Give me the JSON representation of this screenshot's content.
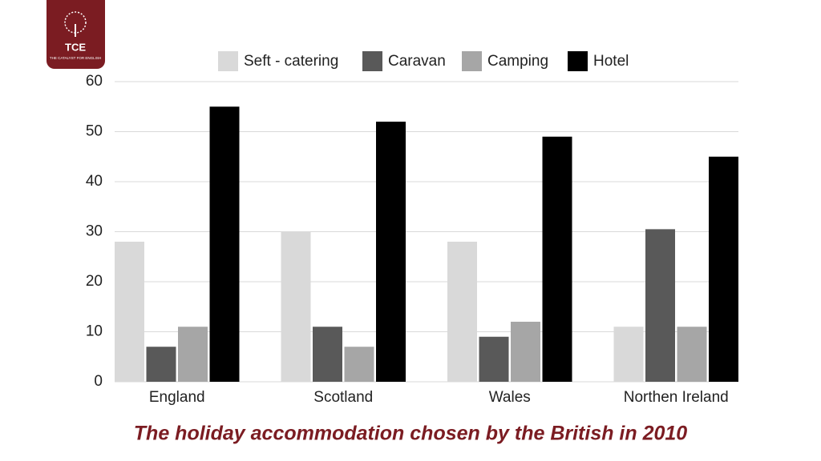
{
  "logo": {
    "title": "TCE",
    "subtitle": "THE CATALYST FOR ENGLISH"
  },
  "chart_data": {
    "type": "bar",
    "title": "The holiday accommodation chosen by the British in 2010",
    "categories": [
      "England",
      "Scotland",
      "Wales",
      "Northen Ireland"
    ],
    "series": [
      {
        "name": "Seft - catering",
        "color": "#d9d9d9",
        "values": [
          28,
          30,
          28,
          11
        ]
      },
      {
        "name": "Caravan",
        "color": "#595959",
        "values": [
          7,
          11,
          9,
          30.5
        ]
      },
      {
        "name": "Camping",
        "color": "#a6a6a6",
        "values": [
          11,
          7,
          12,
          11
        ]
      },
      {
        "name": "Hotel",
        "color": "#000000",
        "values": [
          55,
          52,
          49,
          45
        ]
      }
    ],
    "ylim": [
      0,
      60
    ],
    "yticks": [
      0,
      10,
      20,
      30,
      40,
      50,
      60
    ],
    "grid": true,
    "legend": "top"
  }
}
